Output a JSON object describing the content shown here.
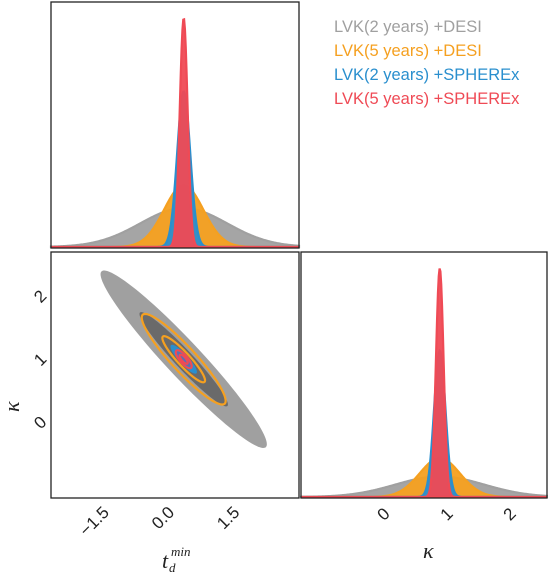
{
  "chart_data": {
    "type": "corner",
    "colors": {
      "LVK(2 years) +DESI": "#a0a0a0",
      "LVK(5 years) +DESI": "#f5a020",
      "LVK(2 years) +SPHEREx": "#2a8fce",
      "LVK(5 years) +SPHEREx": "#ef4a55"
    },
    "legend": {
      "position": "top-right",
      "entries": [
        "LVK(2 years) +DESI",
        "LVK(5 years) +DESI",
        "LVK(2 years) +SPHEREx",
        "LVK(5 years) +SPHEREx"
      ]
    },
    "parameters": [
      {
        "label": "t",
        "subscript": "d",
        "superscript": "min",
        "xlim": [
          -2.5,
          3.2
        ],
        "ticks": [
          "−1.5",
          "0.0",
          "1.5"
        ],
        "tick_values": [
          -1.5,
          0.0,
          1.5
        ]
      },
      {
        "label": "κ",
        "xlim": [
          -1.2,
          2.7
        ],
        "ticks": [
          "0",
          "1",
          "2"
        ],
        "tick_values": [
          0,
          1,
          2
        ]
      }
    ],
    "marginal_t": {
      "xlim": [
        -2.5,
        3.2
      ],
      "series": [
        {
          "name": "LVK(2 years) +DESI",
          "mean": 0.55,
          "sigma": 1.0,
          "peak": 0.17
        },
        {
          "name": "LVK(5 years) +DESI",
          "mean": 0.55,
          "sigma": 0.45,
          "peak": 0.27
        },
        {
          "name": "LVK(2 years) +SPHEREx",
          "mean": 0.55,
          "sigma": 0.15,
          "peak": 0.68
        },
        {
          "name": "LVK(5 years) +SPHEREx",
          "mean": 0.55,
          "sigma": 0.09,
          "peak": 1.0
        }
      ]
    },
    "marginal_kappa": {
      "xlim": [
        -1.2,
        2.7
      ],
      "series": [
        {
          "name": "LVK(2 years) +DESI",
          "mean": 1.0,
          "sigma": 0.7,
          "peak": 0.09
        },
        {
          "name": "LVK(5 years) +DESI",
          "mean": 1.0,
          "sigma": 0.32,
          "peak": 0.17
        },
        {
          "name": "LVK(2 years) +SPHEREx",
          "mean": 1.0,
          "sigma": 0.09,
          "peak": 0.64
        },
        {
          "name": "LVK(5 years) +SPHEREx",
          "mean": 1.0,
          "sigma": 0.06,
          "peak": 1.0
        }
      ]
    },
    "joint": {
      "xlim": [
        -2.5,
        3.2
      ],
      "ylim": [
        -1.2,
        2.7
      ],
      "yticks": [
        "0",
        "1",
        "2"
      ],
      "ytick_values": [
        0,
        1,
        2
      ],
      "ylabel": "κ",
      "center": [
        0.55,
        1.0
      ],
      "ellipses": [
        {
          "name": "LVK(2 years) +DESI",
          "style": "filled",
          "angle_deg": -36,
          "levels": [
            {
              "a": 2.35,
              "b": 0.33
            },
            {
              "a": 1.25,
              "b": 0.17
            }
          ]
        },
        {
          "name": "LVK(5 years) +DESI",
          "style": "outline",
          "angle_deg": -36,
          "levels": [
            {
              "a": 1.18,
              "b": 0.23
            },
            {
              "a": 0.6,
              "b": 0.12
            }
          ]
        },
        {
          "name": "LVK(2 years) +SPHEREx",
          "style": "filled",
          "angle_deg": -36,
          "levels": [
            {
              "a": 0.37,
              "b": 0.09
            },
            {
              "a": 0.19,
              "b": 0.047
            }
          ]
        },
        {
          "name": "LVK(5 years) +SPHEREx",
          "style": "outline",
          "angle_deg": -36,
          "levels": [
            {
              "a": 0.22,
              "b": 0.075
            },
            {
              "a": 0.11,
              "b": 0.04
            }
          ]
        }
      ]
    }
  }
}
